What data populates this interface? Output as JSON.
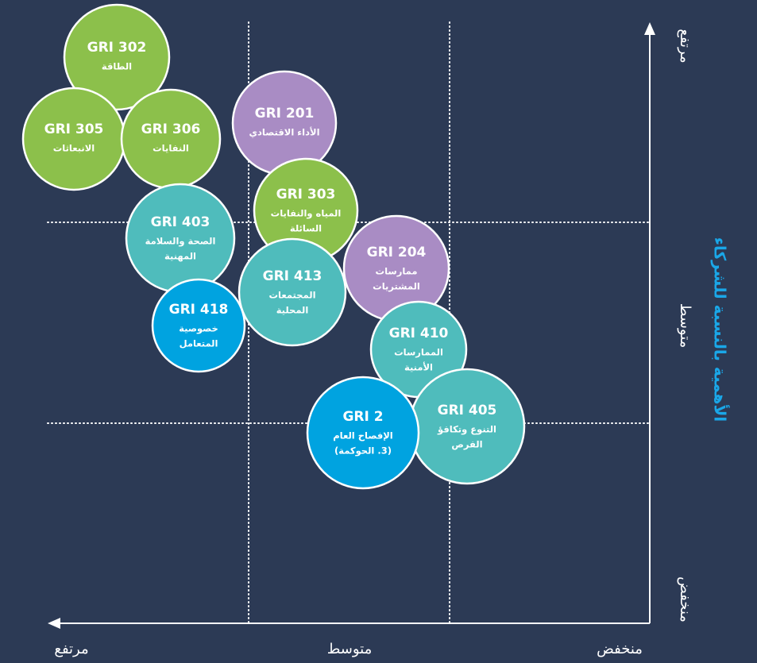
{
  "axes": {
    "x_axis": {
      "labels": [
        "مرتفع",
        "متوسط",
        "منخفض"
      ]
    },
    "y_axis": {
      "title": "الأهمية بالنسبة للشركاء",
      "labels": [
        "مرتفع",
        "متوسط",
        "منخفض"
      ]
    }
  },
  "nodes": [
    {
      "code": "GRI 302",
      "lines": [
        "الطاقة"
      ]
    },
    {
      "code": "GRI 305",
      "lines": [
        "الانبعاثات"
      ]
    },
    {
      "code": "GRI 306",
      "lines": [
        "النفايات"
      ]
    },
    {
      "code": "GRI 201",
      "lines": [
        "الأداء الاقتصادي"
      ]
    },
    {
      "code": "GRI 303",
      "lines": [
        "المياه والنفايات",
        "السائلة"
      ]
    },
    {
      "code": "GRI 403",
      "lines": [
        "الصحة والسلامة",
        "المهنية"
      ]
    },
    {
      "code": "GRI 204",
      "lines": [
        "ممارسات",
        "المشتريات"
      ]
    },
    {
      "code": "GRI 413",
      "lines": [
        "المجتمعات",
        "المحلية"
      ]
    },
    {
      "code": "GRI 418",
      "lines": [
        "خصوصية",
        "المتعامل"
      ]
    },
    {
      "code": "GRI 410",
      "lines": [
        "الممارسات",
        "الأمنية"
      ]
    },
    {
      "code": "GRI 405",
      "lines": [
        "التنوع وتكافؤ",
        "الفرص"
      ]
    },
    {
      "code": "GRI 2",
      "lines": [
        "الإفصاح العام",
        "(3. الحوكمة)"
      ]
    }
  ]
}
